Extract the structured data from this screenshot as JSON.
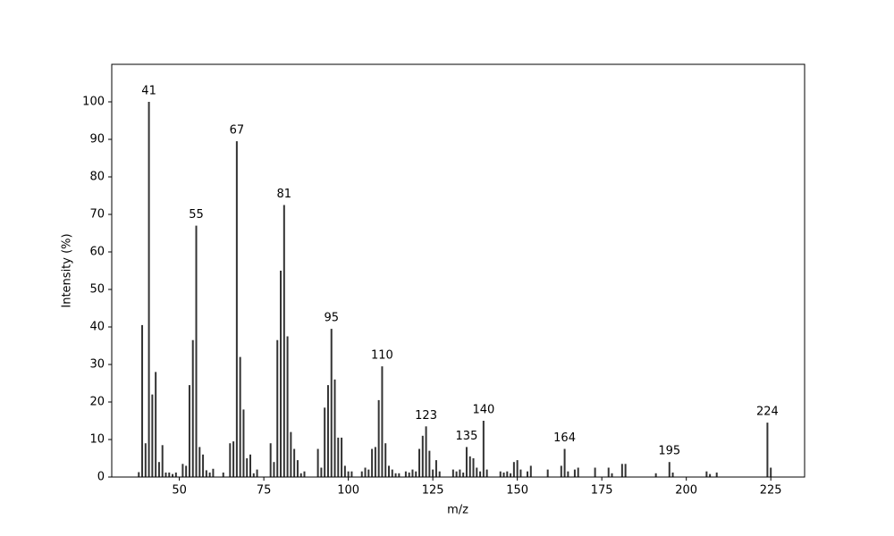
{
  "chart_data": {
    "type": "stem",
    "xlabel": "m/z",
    "ylabel": "Intensity (%)",
    "x": [
      38,
      39,
      40,
      41,
      42,
      43,
      44,
      45,
      46,
      47,
      48,
      49,
      51,
      52,
      53,
      54,
      55,
      56,
      57,
      58,
      59,
      60,
      63,
      65,
      66,
      67,
      68,
      69,
      70,
      71,
      72,
      73,
      77,
      78,
      79,
      80,
      81,
      82,
      83,
      84,
      85,
      86,
      87,
      91,
      92,
      93,
      94,
      95,
      96,
      97,
      98,
      99,
      100,
      101,
      104,
      105,
      106,
      107,
      108,
      109,
      110,
      111,
      112,
      113,
      114,
      115,
      117,
      118,
      119,
      120,
      121,
      122,
      123,
      124,
      125,
      126,
      127,
      131,
      132,
      133,
      134,
      135,
      136,
      137,
      138,
      139,
      140,
      141,
      145,
      146,
      147,
      148,
      149,
      150,
      151,
      153,
      154,
      159,
      163,
      164,
      165,
      167,
      168,
      173,
      177,
      178,
      181,
      182,
      191,
      195,
      196,
      206,
      207,
      209,
      224,
      225
    ],
    "values": [
      1.3,
      40.5,
      9,
      100,
      22,
      28,
      4,
      8.5,
      1.2,
      1.2,
      0.8,
      1.2,
      3.5,
      3,
      24.5,
      36.5,
      67,
      8,
      6,
      1.8,
      1.2,
      2.2,
      1.2,
      9,
      9.5,
      89.5,
      32,
      18,
      5,
      6,
      1,
      2,
      9,
      4,
      36.5,
      55,
      72.5,
      37.5,
      12,
      7.5,
      4.5,
      1,
      1.5,
      7.5,
      2.5,
      18.5,
      24.5,
      39.5,
      26,
      10.5,
      10.5,
      3,
      1.5,
      1.5,
      1.5,
      2.5,
      2,
      7.5,
      8,
      20.5,
      29.5,
      9,
      3,
      2,
      1,
      1,
      1.5,
      1.2,
      2,
      1.5,
      7.5,
      11,
      13.5,
      7,
      2,
      4.5,
      1.5,
      2,
      1.5,
      2,
      1.2,
      8,
      5.5,
      5,
      2.5,
      1.5,
      15,
      2,
      1.5,
      1.2,
      1.5,
      1,
      4,
      4.5,
      2,
      1.5,
      3,
      2,
      3,
      7.5,
      1.5,
      2,
      2.5,
      2.5,
      2.5,
      1,
      3.5,
      3.5,
      1,
      4,
      1.2,
      1.5,
      0.8,
      1.2,
      14.5,
      2.5
    ],
    "peak_labels": [
      41,
      55,
      67,
      81,
      95,
      110,
      123,
      135,
      140,
      164,
      195,
      224
    ],
    "color": "#333333",
    "xlim": [
      30,
      235
    ],
    "xticks": [
      50,
      75,
      100,
      125,
      150,
      175,
      200,
      225
    ],
    "ylim": [
      0,
      110
    ],
    "yticks": [
      0,
      10,
      20,
      30,
      40,
      50,
      60,
      70,
      80,
      90,
      100
    ],
    "grid": false
  }
}
